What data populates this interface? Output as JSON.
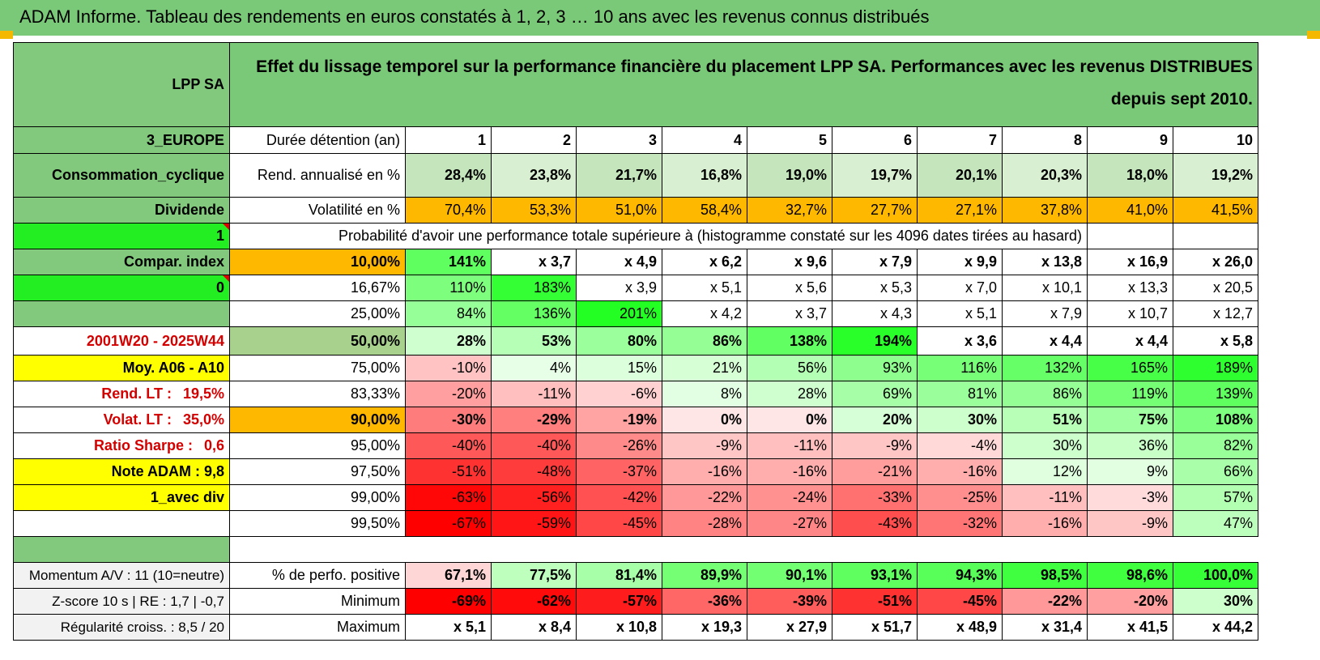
{
  "title": "ADAM Informe. Tableau des rendements en euros constatés à 1, 2, 3 … 10 ans avec les revenus connus distribués",
  "colors": {
    "green_header": "#7ac978",
    "side_green": "#82c97e",
    "bright_green": "#22ee22",
    "yellow": "#ffff00",
    "orange": "#ffb800",
    "red_text": "#d40000"
  },
  "header": {
    "fund": "LPP SA",
    "description": "Effet du lissage temporel sur la performance financière du placement LPP SA. Performances avec les revenus DISTRIBUES depuis sept 2010."
  },
  "side": {
    "region": "3_EUROPE",
    "sector": "Consommation_cyclique",
    "type": "Dividende",
    "code1": "1",
    "compar": "Compar. index",
    "code0": "0",
    "period": "2001W20 - 2025W44",
    "moy": "Moy. A06 - A10",
    "rend_lt_label": "Rend. LT :",
    "rend_lt_value": "19,5%",
    "volat_lt_label": "Volat. LT :",
    "volat_lt_value": "35,0%",
    "sharpe_label": "Ratio Sharpe :",
    "sharpe_value": "0,6",
    "note": "Note ADAM : 9,8",
    "avec_div": "1_avec div",
    "momentum": "Momentum A/V : 11 (10=neutre)",
    "zscore": "Z-score 10 s | RE : 1,7 | -0,7",
    "regularite": "Régularité croiss. : 8,5 / 20"
  },
  "durations": {
    "label": "Durée détention (an)",
    "years": [
      "1",
      "2",
      "3",
      "4",
      "5",
      "6",
      "7",
      "8",
      "9",
      "10"
    ]
  },
  "rend": {
    "label": "Rend. annualisé en %",
    "values": [
      "28,4%",
      "23,8%",
      "21,7%",
      "16,8%",
      "19,0%",
      "19,7%",
      "20,1%",
      "20,3%",
      "18,0%",
      "19,2%"
    ]
  },
  "vol": {
    "label": "Volatilité en %",
    "values": [
      "70,4%",
      "53,3%",
      "51,0%",
      "58,4%",
      "32,7%",
      "27,7%",
      "27,1%",
      "37,8%",
      "41,0%",
      "41,5%"
    ]
  },
  "prob_title": "Probabilité d'avoir une performance totale supérieure à (histogramme constaté sur les 4096 dates tirées au hasard)",
  "quantiles": [
    {
      "p": "10,00%",
      "values": [
        "141%",
        "x 3,7",
        "x 4,9",
        "x 6,2",
        "x 9,6",
        "x 7,9",
        "x 9,9",
        "x 13,8",
        "x 16,9",
        "x 26,0"
      ]
    },
    {
      "p": "16,67%",
      "values": [
        "110%",
        "183%",
        "x 3,9",
        "x 5,1",
        "x 5,6",
        "x 5,3",
        "x 7,0",
        "x 10,1",
        "x 13,3",
        "x 20,5"
      ]
    },
    {
      "p": "25,00%",
      "values": [
        "84%",
        "136%",
        "201%",
        "x 4,2",
        "x 3,7",
        "x 4,3",
        "x 5,1",
        "x 7,9",
        "x 10,7",
        "x 12,7"
      ]
    },
    {
      "p": "50,00%",
      "values": [
        "28%",
        "53%",
        "80%",
        "86%",
        "138%",
        "194%",
        "x 3,6",
        "x 4,4",
        "x 4,4",
        "x 5,8"
      ]
    },
    {
      "p": "75,00%",
      "values": [
        "-10%",
        "4%",
        "15%",
        "21%",
        "56%",
        "93%",
        "116%",
        "132%",
        "165%",
        "189%"
      ]
    },
    {
      "p": "83,33%",
      "values": [
        "-20%",
        "-11%",
        "-6%",
        "8%",
        "28%",
        "69%",
        "81%",
        "86%",
        "119%",
        "139%"
      ]
    },
    {
      "p": "90,00%",
      "values": [
        "-30%",
        "-29%",
        "-19%",
        "0%",
        "0%",
        "20%",
        "30%",
        "51%",
        "75%",
        "108%"
      ]
    },
    {
      "p": "95,00%",
      "values": [
        "-40%",
        "-40%",
        "-26%",
        "-9%",
        "-11%",
        "-9%",
        "-4%",
        "30%",
        "36%",
        "82%"
      ]
    },
    {
      "p": "97,50%",
      "values": [
        "-51%",
        "-48%",
        "-37%",
        "-16%",
        "-16%",
        "-21%",
        "-16%",
        "12%",
        "9%",
        "66%"
      ]
    },
    {
      "p": "99,00%",
      "values": [
        "-63%",
        "-56%",
        "-42%",
        "-22%",
        "-24%",
        "-33%",
        "-25%",
        "-11%",
        "-3%",
        "57%"
      ]
    },
    {
      "p": "99,50%",
      "values": [
        "-67%",
        "-59%",
        "-45%",
        "-28%",
        "-27%",
        "-43%",
        "-32%",
        "-16%",
        "-9%",
        "47%"
      ]
    }
  ],
  "stats": [
    {
      "label": "% de perfo. positive",
      "values": [
        "67,1%",
        "77,5%",
        "81,4%",
        "89,9%",
        "90,1%",
        "93,1%",
        "94,3%",
        "98,5%",
        "98,6%",
        "100,0%"
      ]
    },
    {
      "label": "Minimum",
      "values": [
        "-69%",
        "-62%",
        "-57%",
        "-36%",
        "-39%",
        "-51%",
        "-45%",
        "-22%",
        "-20%",
        "30%"
      ]
    },
    {
      "label": "Maximum",
      "values": [
        "x 5,1",
        "x 8,4",
        "x 10,8",
        "x 19,3",
        "x 27,9",
        "x 51,7",
        "x 48,9",
        "x 31,4",
        "x 41,5",
        "x 44,2"
      ]
    }
  ]
}
